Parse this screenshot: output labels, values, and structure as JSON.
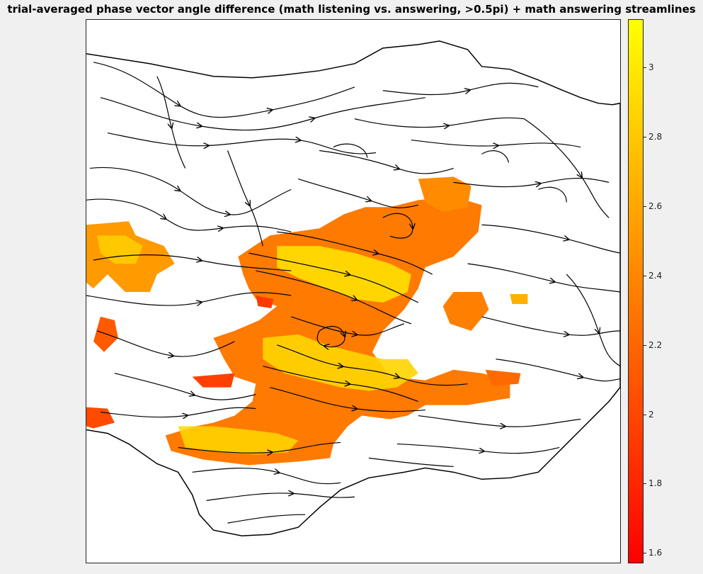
{
  "title": "trial-averaged phase vector angle difference (math listening vs. answering, >0.5pi) + math answering streamlines",
  "chart_data": {
    "type": "heatmap",
    "title": "trial-averaged phase vector angle difference (math listening vs. answering, >0.5pi) + math answering streamlines",
    "colormap": "autumn",
    "colorbar": {
      "range": [
        1.57,
        3.14
      ],
      "ticks": [
        1.6,
        1.8,
        2,
        2.2,
        2.4,
        2.6,
        2.8,
        3
      ],
      "tick_labels": [
        "1.6",
        "1.8",
        "2",
        "2.2",
        "2.4",
        "2.6",
        "2.8",
        "3"
      ],
      "colors": [
        "#ff0000",
        "#ffff00"
      ]
    },
    "overlay": "math answering streamlines",
    "axes_visible": false,
    "grid": false
  }
}
